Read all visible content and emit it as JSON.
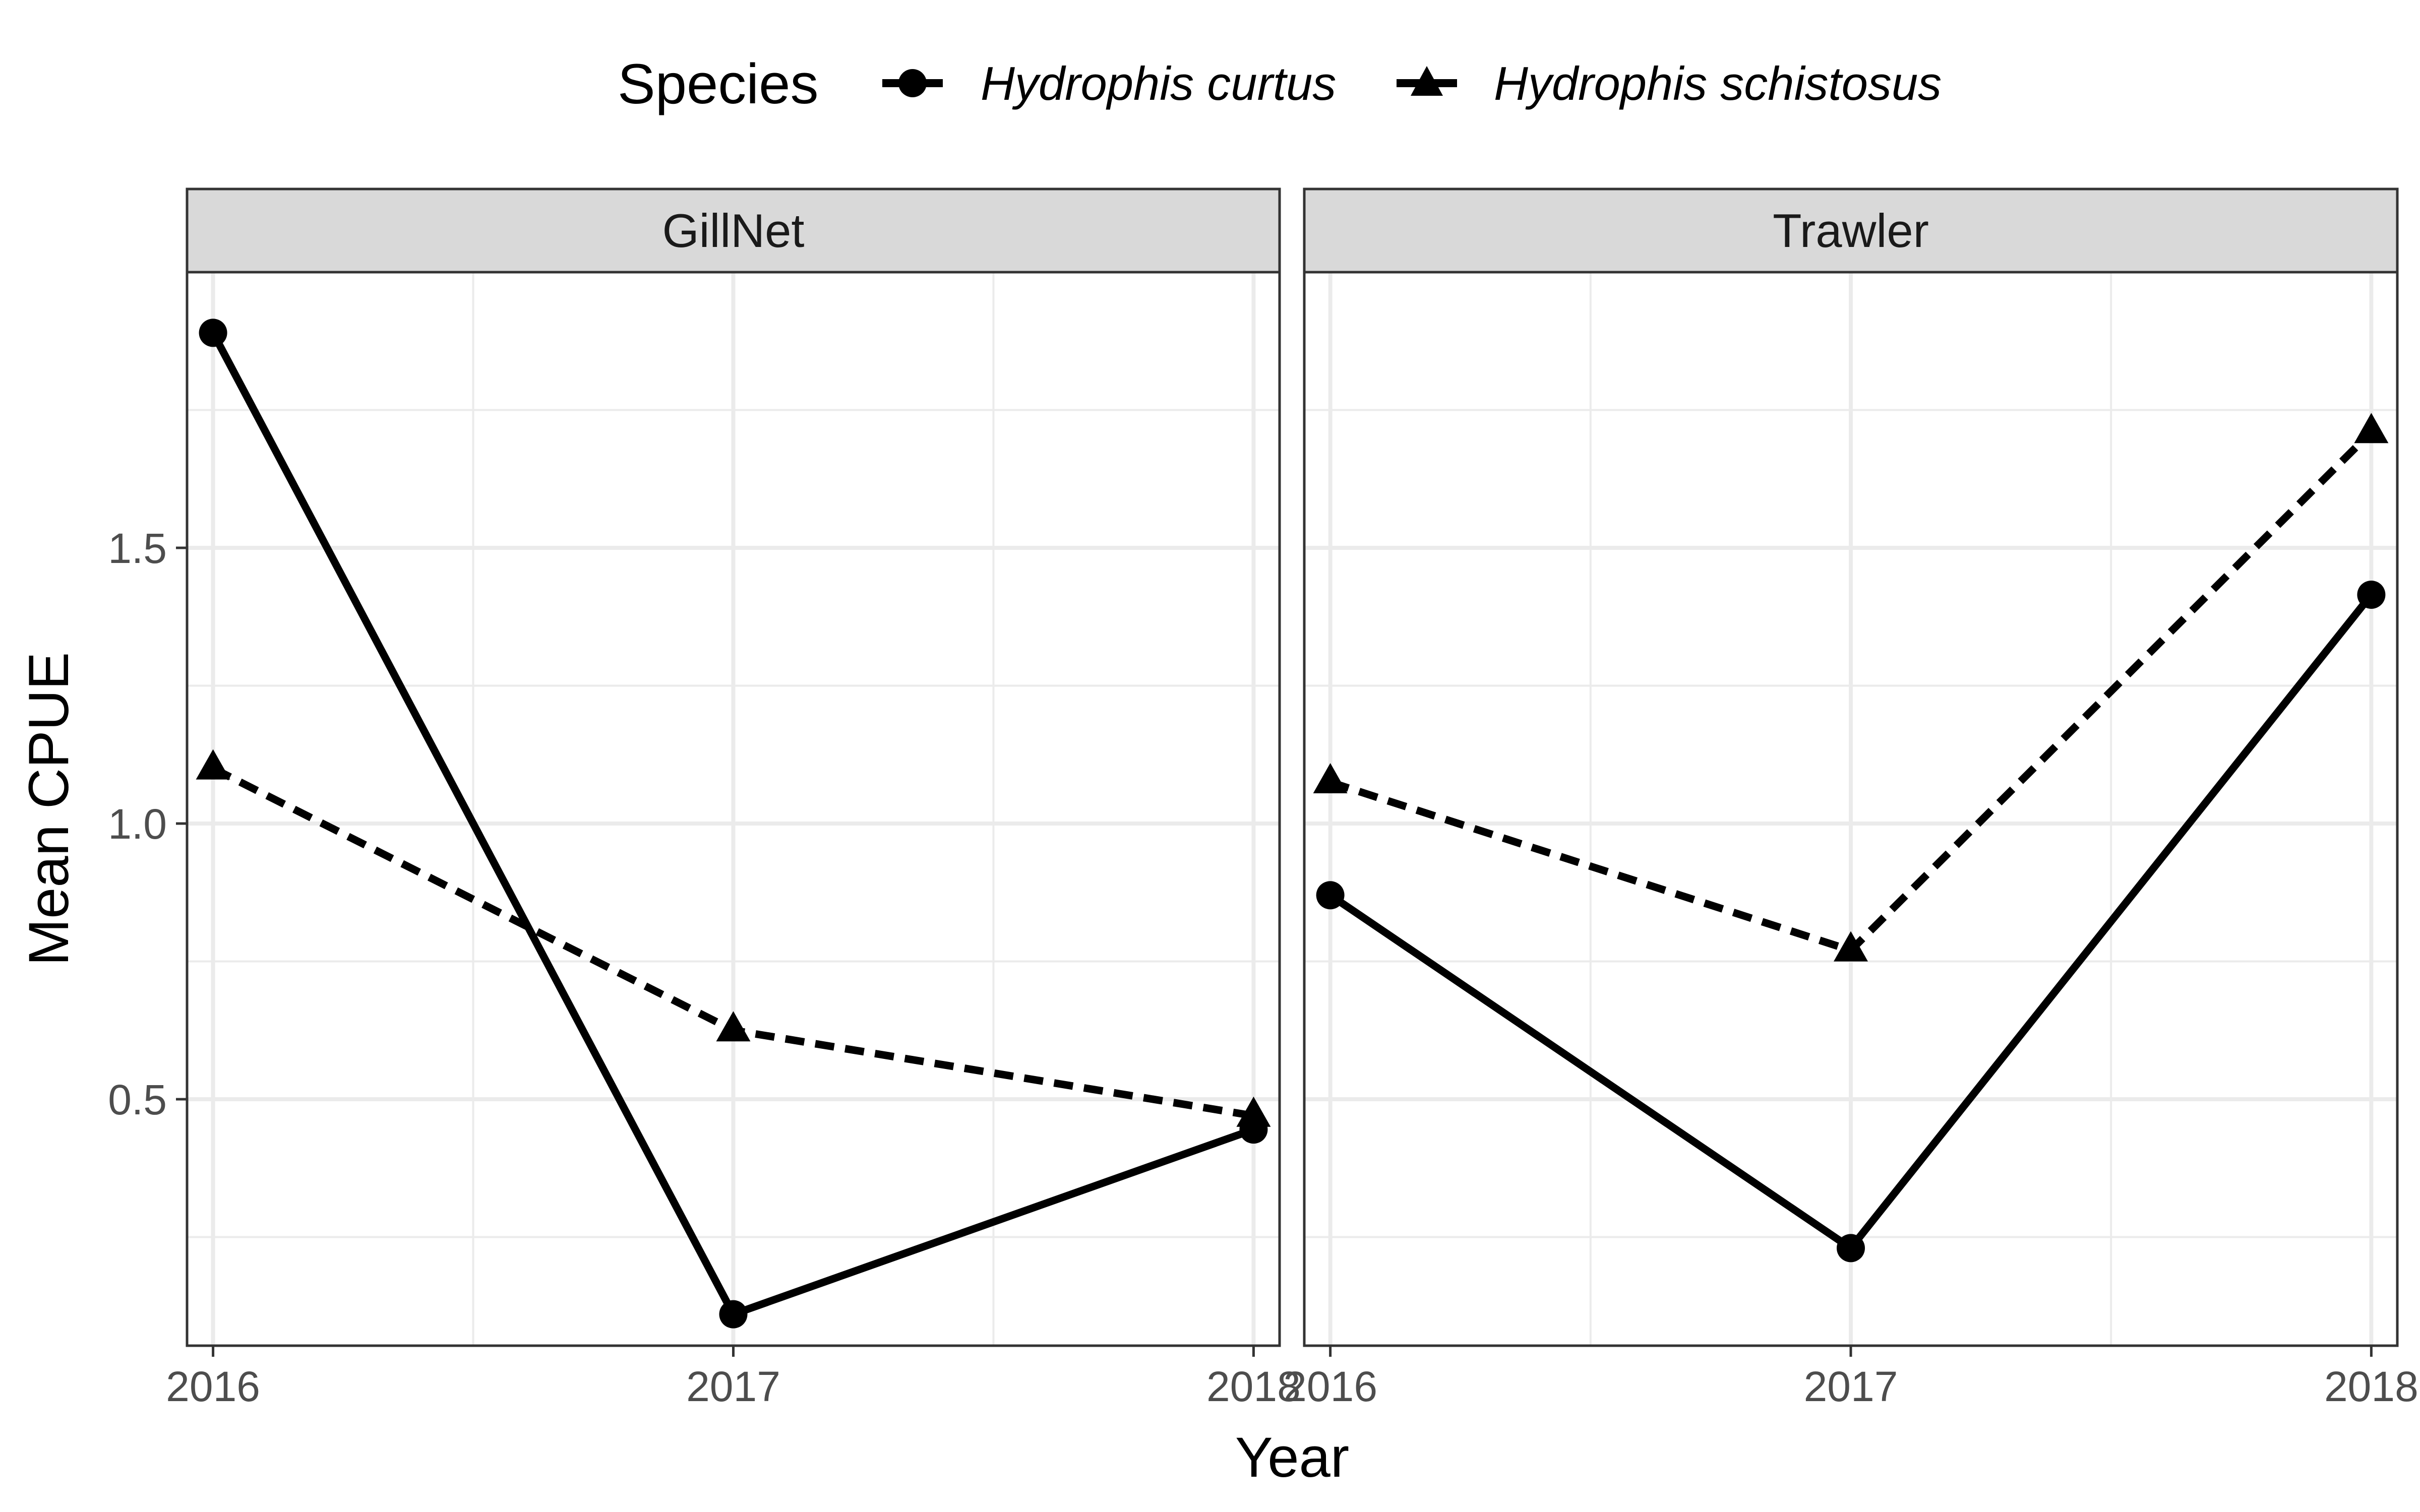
{
  "chart_data": {
    "type": "line",
    "title": "",
    "xlabel": "Year",
    "ylabel": "Mean CPUE",
    "legend": {
      "title": "Species",
      "position": "top",
      "entries": [
        "Hydrophis curtus",
        "Hydrophis schistosus"
      ]
    },
    "x": [
      2016,
      2017,
      2018
    ],
    "x_tick_labels": [
      "2016",
      "2017",
      "2018"
    ],
    "xlim": [
      2015.95,
      2018.05
    ],
    "ylim": [
      0.053,
      2.0
    ],
    "y_ticks": [
      0.5,
      1.0,
      1.5
    ],
    "y_tick_labels": [
      "0.5",
      "1.0",
      "1.5"
    ],
    "grid": true,
    "series_styles": {
      "Hydrophis curtus": {
        "marker": "circle",
        "line": "solid",
        "color": "#000000"
      },
      "Hydrophis schistosus": {
        "marker": "triangle",
        "line": "dashed",
        "color": "#000000"
      }
    },
    "panels": [
      {
        "facet": "GillNet",
        "series": [
          {
            "name": "Hydrophis curtus",
            "values": [
              1.89,
              0.11,
              0.445
            ]
          },
          {
            "name": "Hydrophis schistosus",
            "values": [
              1.1,
              0.625,
              0.47
            ]
          }
        ]
      },
      {
        "facet": "Trawler",
        "series": [
          {
            "name": "Hydrophis curtus",
            "values": [
              0.87,
              0.23,
              1.415
            ]
          },
          {
            "name": "Hydrophis schistosus",
            "values": [
              1.075,
              0.77,
              1.71
            ]
          }
        ]
      }
    ]
  }
}
